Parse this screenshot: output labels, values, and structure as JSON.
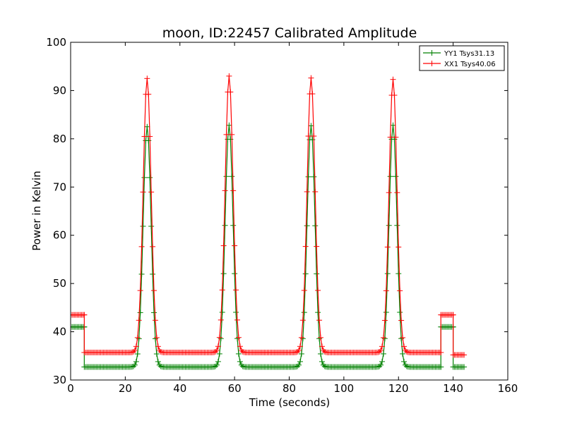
{
  "chart_data": {
    "type": "line",
    "title": "moon, ID:22457 Calibrated Amplitude",
    "xlabel": "Time (seconds)",
    "ylabel": "Power in Kelvin",
    "xlim": [
      0,
      160
    ],
    "ylim": [
      30,
      100
    ],
    "xticks": [
      0,
      20,
      40,
      60,
      80,
      100,
      120,
      140,
      160
    ],
    "yticks": [
      30,
      40,
      50,
      60,
      70,
      80,
      90,
      100
    ],
    "legend_position": "top-right",
    "grid": false,
    "sample_step": 1,
    "series": [
      {
        "name": "YY1 Tsys31.13",
        "color": "#008000",
        "marker": "+",
        "segments": [
          {
            "start": 0,
            "end": 5,
            "baseline": 41.0
          },
          {
            "start": 5,
            "end": 135.5,
            "baseline": 32.7
          },
          {
            "start": 135.5,
            "end": 140,
            "baseline": 41.0
          },
          {
            "start": 140,
            "end": 144,
            "baseline": 32.7
          }
        ],
        "peaks": [
          {
            "center": 28,
            "peak": 82.5
          },
          {
            "center": 58,
            "peak": 82.8
          },
          {
            "center": 88,
            "peak": 82.7
          },
          {
            "center": 118,
            "peak": 82.8
          }
        ]
      },
      {
        "name": "XX1 Tsys40.06",
        "color": "#ff0000",
        "marker": "+",
        "segments": [
          {
            "start": 0,
            "end": 5,
            "baseline": 43.5
          },
          {
            "start": 5,
            "end": 135.5,
            "baseline": 35.7
          },
          {
            "start": 135.5,
            "end": 140,
            "baseline": 43.5
          },
          {
            "start": 140,
            "end": 144,
            "baseline": 35.2
          }
        ],
        "peaks": [
          {
            "center": 28,
            "peak": 92.5
          },
          {
            "center": 58,
            "peak": 93.0
          },
          {
            "center": 88,
            "peak": 92.6
          },
          {
            "center": 118,
            "peak": 92.3
          }
        ]
      }
    ]
  }
}
